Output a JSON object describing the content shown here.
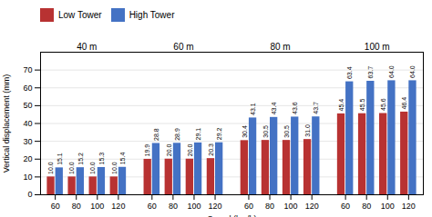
{
  "chart_data": {
    "type": "bar",
    "xlabel": "Speed (km/h)",
    "ylabel": "Vertical displacement (mm)",
    "categories": [
      "60",
      "80",
      "100",
      "120",
      "60",
      "80",
      "100",
      "120",
      "60",
      "80",
      "100",
      "120",
      "60",
      "80",
      "100",
      "120"
    ],
    "groups": [
      "40 m",
      "60 m",
      "80 m",
      "100 m"
    ],
    "series": [
      {
        "name": "Low Tower",
        "color": "#b83232",
        "values": [
          10.0,
          10.0,
          10.0,
          10.0,
          19.9,
          20.0,
          20.0,
          20.3,
          30.4,
          30.5,
          30.5,
          31.0,
          45.4,
          45.5,
          45.6,
          46.4
        ],
        "value_labels": [
          "10.0",
          "10.0",
          "10.0",
          "10.0",
          "19.9",
          "20.0",
          "20.0",
          "20.3",
          "30.4",
          "30.5",
          "30.5",
          "31.0",
          "45.4",
          "45.5",
          "45.6",
          "46.4"
        ]
      },
      {
        "name": "High Tower",
        "color": "#4472c4",
        "values": [
          15.1,
          15.2,
          15.3,
          15.4,
          28.8,
          28.9,
          29.1,
          29.2,
          43.1,
          43.4,
          43.6,
          43.7,
          63.4,
          63.7,
          64.0,
          64.0
        ],
        "value_labels": [
          "15.1",
          "15.2",
          "15.3",
          "15.4",
          "28.8",
          "28.9",
          "29.1",
          "29.2",
          "43.1",
          "43.4",
          "43.6",
          "43.7",
          "63.4",
          "63.7",
          "64.0",
          "64.0"
        ]
      }
    ],
    "ylim": [
      0,
      80
    ],
    "yticks": [
      0,
      10,
      20,
      30,
      40,
      50,
      60,
      70
    ],
    "grid": true,
    "legend": "top",
    "data_labels": true
  }
}
